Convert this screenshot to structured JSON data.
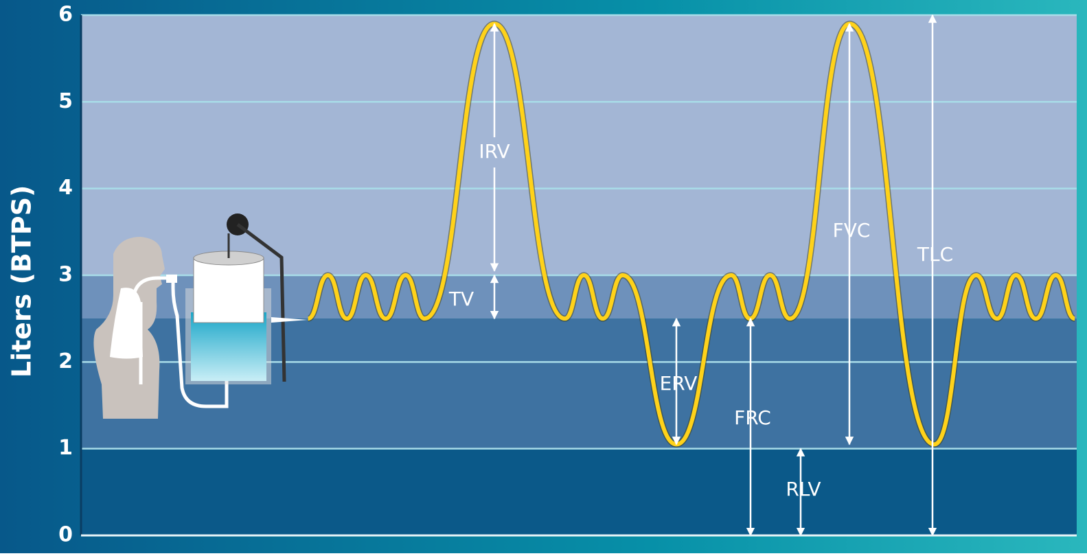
{
  "chart_data": {
    "type": "line",
    "ylabel": "Liters (BTPS)",
    "ylim": [
      0,
      6
    ],
    "yticks": [
      0,
      1,
      2,
      3,
      4,
      5,
      6
    ],
    "grid": true,
    "xlim": [
      0,
      100
    ],
    "bands": [
      {
        "from": 3,
        "to": 6,
        "color": "#a3b6d5"
      },
      {
        "from": 2.5,
        "to": 3,
        "color": "#6e91bb"
      },
      {
        "from": 1,
        "to": 2.5,
        "color": "#3e72a1"
      },
      {
        "from": 0,
        "to": 1,
        "color": "#0b5989"
      }
    ],
    "series": [
      {
        "color": "#ffd21a",
        "x": [
          22.8,
          24.8,
          26.7,
          28.6,
          30.6,
          32.6,
          34.5,
          41.5,
          48.6,
          50.5,
          52.4,
          54.4,
          59.8,
          65.3,
          67.2,
          69.2,
          71.2,
          77.2,
          85.7,
          89.9,
          92.0,
          93.9,
          95.9,
          97.9,
          99.8
        ],
        "values": [
          2.5,
          3,
          2.5,
          3,
          2.5,
          3,
          2.5,
          5.9,
          2.5,
          3,
          2.5,
          3,
          1.05,
          3,
          2.5,
          3,
          2.5,
          5.9,
          1.05,
          3,
          2.5,
          3,
          2.5,
          3,
          2.5
        ]
      }
    ],
    "annotations": [
      {
        "text": "IRV",
        "from": 3.05,
        "to": 5.9
      },
      {
        "text": "TV",
        "from": 2.5,
        "to": 3
      },
      {
        "text": "ERV",
        "from": 1.05,
        "to": 2.5
      },
      {
        "text": "FRC",
        "from": 0,
        "to": 2.5
      },
      {
        "text": "FVC",
        "from": 1.05,
        "to": 5.9
      },
      {
        "text": "TLC",
        "from": 0,
        "to": 6
      },
      {
        "text": "RLV",
        "from": 0,
        "to": 1
      }
    ]
  }
}
